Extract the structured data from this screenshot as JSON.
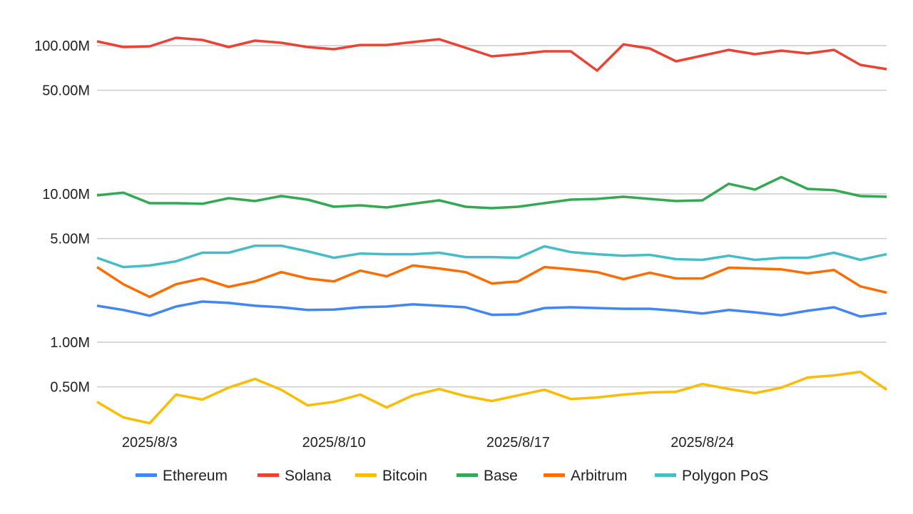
{
  "chart_data": {
    "type": "line",
    "title": "",
    "xlabel": "",
    "ylabel": "",
    "y_scale": "log",
    "grid": true,
    "legend_position": "bottom",
    "y_ticks": [
      {
        "value": 100,
        "label": "100.00M"
      },
      {
        "value": 50,
        "label": "50.00M"
      },
      {
        "value": 10,
        "label": "10.00M"
      },
      {
        "value": 5,
        "label": "5.00M"
      },
      {
        "value": 1,
        "label": "1.00M"
      },
      {
        "value": 0.5,
        "label": "0.50M"
      }
    ],
    "y_unit": "M",
    "x_ticks": [
      "2025/8/3",
      "2025/8/10",
      "2025/8/17",
      "2025/8/24"
    ],
    "x": [
      "2025/8/1",
      "2025/8/2",
      "2025/8/3",
      "2025/8/4",
      "2025/8/5",
      "2025/8/6",
      "2025/8/7",
      "2025/8/8",
      "2025/8/9",
      "2025/8/10",
      "2025/8/11",
      "2025/8/12",
      "2025/8/13",
      "2025/8/14",
      "2025/8/15",
      "2025/8/16",
      "2025/8/17",
      "2025/8/18",
      "2025/8/19",
      "2025/8/20",
      "2025/8/21",
      "2025/8/22",
      "2025/8/23",
      "2025/8/24",
      "2025/8/25",
      "2025/8/26",
      "2025/8/27",
      "2025/8/28",
      "2025/8/29",
      "2025/8/30",
      "2025/8/31"
    ],
    "series": [
      {
        "name": "Ethereum",
        "color": "#4285F4",
        "values": [
          1.76,
          1.65,
          1.51,
          1.74,
          1.88,
          1.84,
          1.76,
          1.72,
          1.65,
          1.66,
          1.72,
          1.74,
          1.8,
          1.76,
          1.72,
          1.53,
          1.54,
          1.7,
          1.72,
          1.7,
          1.68,
          1.68,
          1.63,
          1.56,
          1.65,
          1.59,
          1.52,
          1.63,
          1.72,
          1.49,
          1.57
        ]
      },
      {
        "name": "Solana",
        "color": "#EA4335",
        "values": [
          106.9,
          97.8,
          98.9,
          112.9,
          109.3,
          97.8,
          108.0,
          104.5,
          97.8,
          94.6,
          101.0,
          101.0,
          105.7,
          110.5,
          96.7,
          84.7,
          87.6,
          91.5,
          91.5,
          67.9,
          102.0,
          95.7,
          78.4,
          85.6,
          93.6,
          87.6,
          92.5,
          88.5,
          93.6,
          74.2,
          69.4
        ]
      },
      {
        "name": "Bitcoin",
        "color": "#FBBC04",
        "values": [
          0.396,
          0.311,
          0.284,
          0.443,
          0.41,
          0.494,
          0.565,
          0.478,
          0.375,
          0.396,
          0.443,
          0.363,
          0.438,
          0.483,
          0.433,
          0.401,
          0.438,
          0.478,
          0.414,
          0.424,
          0.443,
          0.458,
          0.463,
          0.522,
          0.483,
          0.453,
          0.494,
          0.578,
          0.597,
          0.631,
          0.478
        ]
      },
      {
        "name": "Base",
        "color": "#34A853",
        "values": [
          9.78,
          10.2,
          8.66,
          8.66,
          8.57,
          9.36,
          8.95,
          9.67,
          9.15,
          8.19,
          8.38,
          8.1,
          8.57,
          9.05,
          8.19,
          8.01,
          8.19,
          8.66,
          9.15,
          9.25,
          9.57,
          9.25,
          8.95,
          9.05,
          11.7,
          10.7,
          13.0,
          10.8,
          10.6,
          9.67,
          9.57
        ]
      },
      {
        "name": "Arbitrum",
        "color": "#FF6D01",
        "values": [
          3.21,
          2.46,
          2.02,
          2.46,
          2.69,
          2.36,
          2.57,
          2.97,
          2.69,
          2.57,
          3.04,
          2.78,
          3.29,
          3.14,
          2.97,
          2.49,
          2.57,
          3.21,
          3.1,
          2.97,
          2.66,
          2.94,
          2.69,
          2.69,
          3.18,
          3.14,
          3.1,
          2.91,
          3.07,
          2.38,
          2.16
        ]
      },
      {
        "name": "Polygon PoS",
        "color": "#46BDC6",
        "values": [
          3.71,
          3.21,
          3.29,
          3.51,
          4.01,
          4.01,
          4.47,
          4.47,
          4.1,
          3.71,
          3.96,
          3.92,
          3.92,
          4.01,
          3.75,
          3.75,
          3.71,
          4.43,
          4.05,
          3.92,
          3.83,
          3.88,
          3.63,
          3.59,
          3.83,
          3.59,
          3.71,
          3.71,
          4.01,
          3.59,
          3.92
        ]
      }
    ]
  }
}
